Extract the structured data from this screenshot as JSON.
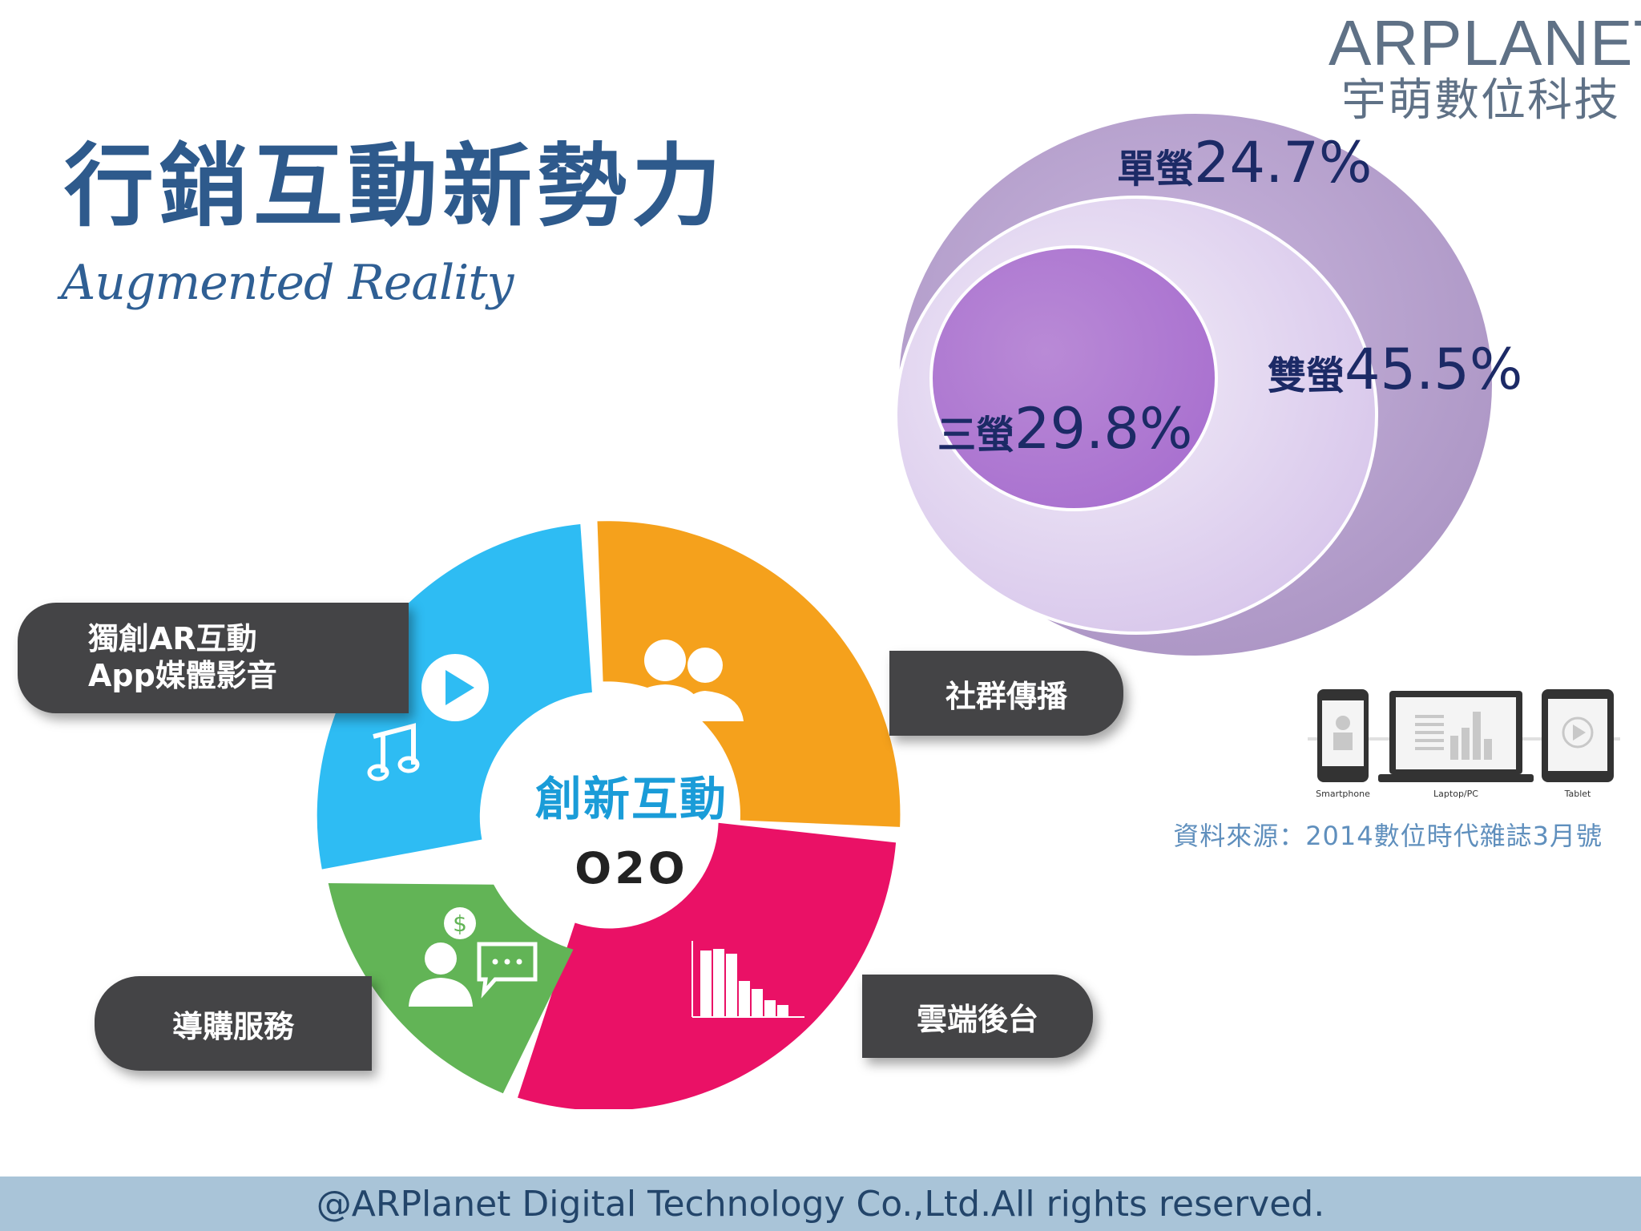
{
  "logo": {
    "brand": "ARPLANET",
    "chinese_name": "宇萌數位科技"
  },
  "header": {
    "title": "行銷互動新勢力",
    "subtitle": "Augmented Reality"
  },
  "screens": [
    {
      "label": "單螢",
      "value": "24.7%"
    },
    {
      "label": "雙螢",
      "value": "45.5%"
    },
    {
      "label": "三螢",
      "value": "29.8%"
    }
  ],
  "devices": [
    {
      "label": "Smartphone",
      "icon": "smartphone-icon"
    },
    {
      "label": "Laptop/PC",
      "icon": "laptop-icon"
    },
    {
      "label": "Tablet",
      "icon": "tablet-icon"
    }
  ],
  "source": "資料來源：2014數位時代雜誌3月號",
  "donut": {
    "center_title": "創新互動",
    "center_subtitle": "O2O",
    "segments": [
      {
        "label_line1": "獨創AR互動",
        "label_line2": "App媒體影音",
        "color": "#2ebcf3",
        "icon": "play-music-icon"
      },
      {
        "label": "社群傳播",
        "color": "#f5a11c",
        "icon": "users-icon"
      },
      {
        "label": "雲端後台",
        "color": "#ea1166",
        "icon": "bar-chart-icon"
      },
      {
        "label": "導購服務",
        "color": "#62b456",
        "icon": "shopper-dollar-icon"
      }
    ]
  },
  "footer": "@ARPlanet Digital Technology Co.,Ltd.All rights reserved."
}
